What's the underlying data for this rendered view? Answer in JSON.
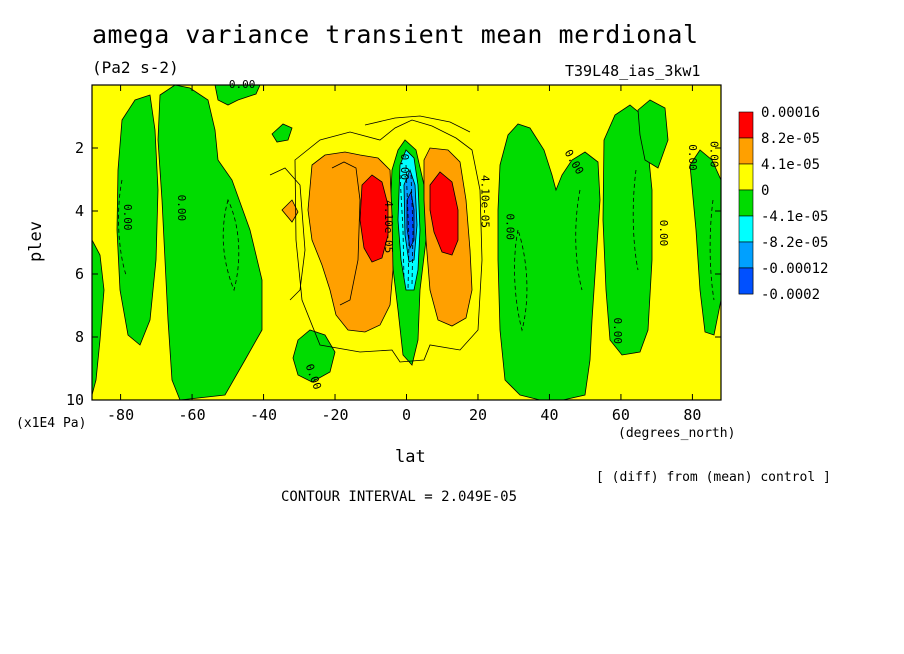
{
  "header": {
    "title": "amega variance transient mean merdional",
    "units": "(Pa2 s-2)",
    "run": "T39L48_ias_3kw1"
  },
  "axes": {
    "ylabel": "plev",
    "yunits": "(x1E4 Pa)",
    "xlabel": "lat",
    "xunits": "(degrees_north)"
  },
  "footer": {
    "note": "[ (diff) from (mean) control ]",
    "contour_interval": "CONTOUR INTERVAL = 2.049E-05"
  },
  "colors": {
    "red": "#ff0000",
    "orange": "#ffa000",
    "yellow": "#ffff00",
    "green": "#00dc00",
    "cyan": "#00ffff",
    "skyblue": "#00a0ff",
    "blue": "#0050ff"
  },
  "chart_data": {
    "type": "contour",
    "xlim": [
      -88,
      88
    ],
    "ylim": [
      10,
      0
    ],
    "x_ticks": [
      -80,
      -60,
      -40,
      -20,
      0,
      20,
      40,
      60,
      80
    ],
    "x_tick_labels": [
      "-80",
      "-60",
      "-40",
      "-20",
      "0",
      "20",
      "40",
      "60",
      "80"
    ],
    "y_ticks": [
      2,
      4,
      6,
      8,
      10
    ],
    "y_tick_labels": [
      "2",
      "4",
      "6",
      "8",
      "10"
    ],
    "legend": [
      {
        "label": "0.00016",
        "color": "#ff0000"
      },
      {
        "label": "8.2e-05",
        "color": "#ffa000"
      },
      {
        "label": "4.1e-05",
        "color": "#ffff00"
      },
      {
        "label": "0",
        "color": "#00dc00"
      },
      {
        "label": "-4.1e-05",
        "color": "#00ffff"
      },
      {
        "label": "-8.2e-05",
        "color": "#00a0ff"
      },
      {
        "label": "-0.00012",
        "color": "#0050ff"
      },
      {
        "label": "-0.0002",
        "color": "#0050ff"
      }
    ],
    "contour_labels": [
      {
        "text": "0.00",
        "lat": -79,
        "lev": 4.2,
        "rotate": 90
      },
      {
        "text": "0.00",
        "lat": -64,
        "lev": 3.9,
        "rotate": 90
      },
      {
        "text": "0.00",
        "lat": -46,
        "lev": 0.1,
        "rotate": 0
      },
      {
        "text": "0.00",
        "lat": -27,
        "lev": 9.3,
        "rotate": 70
      },
      {
        "text": "4.10e-05",
        "lat": -6,
        "lev": 4.5,
        "rotate": 90
      },
      {
        "text": "0.00",
        "lat": -1.5,
        "lev": 2.6,
        "rotate": 90
      },
      {
        "text": "4.10e-05",
        "lat": 21,
        "lev": 3.7,
        "rotate": 90
      },
      {
        "text": "0.00",
        "lat": 28,
        "lev": 4.5,
        "rotate": 90
      },
      {
        "text": "0.00",
        "lat": 46,
        "lev": 2.5,
        "rotate": 60
      },
      {
        "text": "0.00",
        "lat": 71,
        "lev": 4.7,
        "rotate": 90
      },
      {
        "text": "0.00",
        "lat": 58,
        "lev": 7.8,
        "rotate": 90
      },
      {
        "text": "0.00",
        "lat": 79,
        "lev": 2.3,
        "rotate": 90
      },
      {
        "text": "0.00",
        "lat": 85,
        "lev": 2.2,
        "rotate": 90
      }
    ]
  }
}
